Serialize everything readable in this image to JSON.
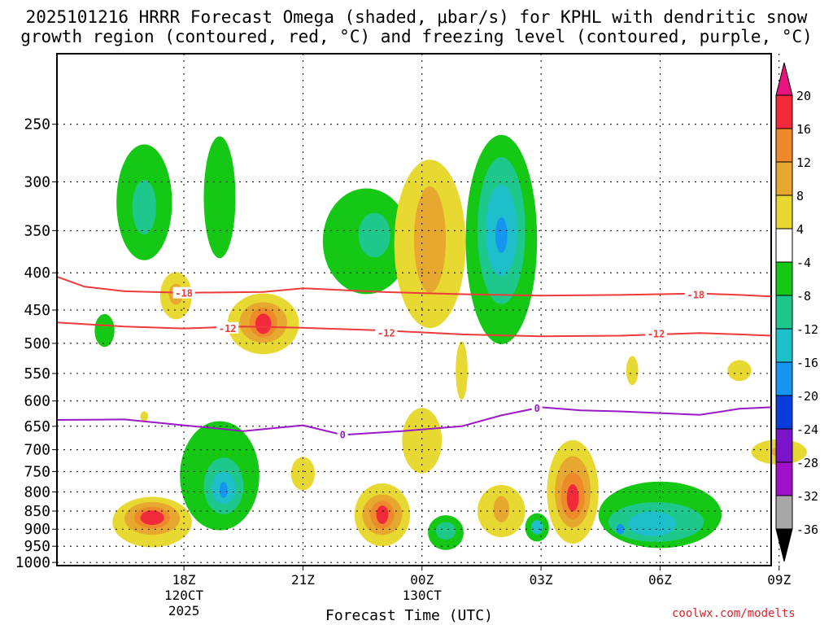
{
  "title": {
    "line1": "2025101216 HRRR Forecast Omega (shaded, μbar/s) for KPHL with dendritic snow",
    "line2": "growth region (contoured, red, °C) and freezing level (contoured, purple, °C)"
  },
  "credit": "coolwx.com/modelts",
  "colors": {
    "green": "#16c816",
    "teal": "#1ec88c",
    "cyan": "#1ebeca",
    "blue": "#1496f0",
    "navy": "#0a3cdc",
    "yellow": "#e8d832",
    "lightorange": "#e6b02e",
    "orange": "#ee8a2c",
    "redorange": "#f4602a",
    "red": "#f02a3a",
    "magenta": "#e6147c",
    "ground": "#a0522d",
    "dgz": "#ee3a3a",
    "freezing": "#9a18c6"
  },
  "chart_data": {
    "type": "heatmap",
    "title": "2025101216 HRRR Forecast Omega (shaded, μbar/s) for KPHL with dendritic snow growth region (contoured, red, °C) and freezing level (contoured, purple, °C)",
    "xlabel": "Forecast Time (UTC)",
    "ylabel": "",
    "xlim_hours_from_18Z": [
      -3.2,
      14.8
    ],
    "ylim_mb": [
      1010,
      200
    ],
    "y_ticks": [
      250,
      300,
      350,
      400,
      450,
      500,
      550,
      600,
      650,
      700,
      750,
      800,
      850,
      900,
      950,
      1000
    ],
    "x_ticks": [
      {
        "hour": 0,
        "label": "18Z",
        "sub1": "120CT",
        "sub2": "2025"
      },
      {
        "hour": 3,
        "label": "21Z",
        "sub1": "",
        "sub2": ""
      },
      {
        "hour": 6,
        "label": "00Z",
        "sub1": "130CT",
        "sub2": ""
      },
      {
        "hour": 9,
        "label": "03Z",
        "sub1": "",
        "sub2": ""
      },
      {
        "hour": 12,
        "label": "06Z",
        "sub1": "",
        "sub2": ""
      },
      {
        "hour": 15,
        "label": "09Z",
        "sub1": "",
        "sub2": ""
      }
    ],
    "colorbar": {
      "labels": [
        "20",
        "16",
        "12",
        "8",
        "4",
        "-4",
        "-8",
        "-12",
        "-16",
        "-20",
        "-24",
        "-28",
        "-32",
        "-36"
      ],
      "bins": [
        {
          "range": "16 to 20",
          "color": "#f02a3a"
        },
        {
          "range": "12 to 16",
          "color": "#ee8a2c"
        },
        {
          "range": "8 to 12",
          "color": "#e6a82e"
        },
        {
          "range": "4 to 8",
          "color": "#e8d832"
        },
        {
          "range": "-4 to 4",
          "color": "#ffffff"
        },
        {
          "range": "-8 to -4",
          "color": "#16c816"
        },
        {
          "range": "-12 to -8",
          "color": "#1ec88c"
        },
        {
          "range": "-16 to -12",
          "color": "#1ebeca"
        },
        {
          "range": "-20 to -16",
          "color": "#1496f0"
        },
        {
          "range": "-24 to -20",
          "color": "#0a3cdc"
        },
        {
          "range": "-28 to -24",
          "color": "#7a14c8"
        },
        {
          "range": "-32 to -28",
          "color": "#a010c8"
        },
        {
          "range": "-36 to -32",
          "color": "#a8a8a8"
        }
      ],
      "top_arrow": "#e6147c",
      "bottom_arrow": "#000000"
    },
    "contours": [
      {
        "name": "dgz-18",
        "label": "-18",
        "color": "#ee3a3a",
        "label_points": [
          [
            0,
            426
          ],
          [
            12.9,
            428
          ]
        ],
        "points": [
          [
            -3.2,
            405
          ],
          [
            -2.5,
            418
          ],
          [
            -1.5,
            424
          ],
          [
            0,
            426
          ],
          [
            2,
            425
          ],
          [
            3,
            420
          ],
          [
            5,
            425
          ],
          [
            7,
            428
          ],
          [
            9,
            430
          ],
          [
            11,
            429
          ],
          [
            12,
            428
          ],
          [
            13,
            427
          ],
          [
            14,
            429
          ],
          [
            14.8,
            431
          ]
        ]
      },
      {
        "name": "dgz-12",
        "label": "-12",
        "color": "#ee3a3a",
        "label_points": [
          [
            1.1,
            476
          ],
          [
            5.1,
            483
          ],
          [
            11.9,
            484
          ]
        ],
        "points": [
          [
            -3.2,
            468
          ],
          [
            -1.5,
            474
          ],
          [
            0,
            477
          ],
          [
            1.5,
            474
          ],
          [
            3,
            476
          ],
          [
            5,
            480
          ],
          [
            7,
            486
          ],
          [
            9,
            489
          ],
          [
            11,
            488
          ],
          [
            12,
            486
          ],
          [
            13,
            484
          ],
          [
            14,
            486
          ],
          [
            14.8,
            488
          ]
        ]
      },
      {
        "name": "freezing",
        "label": "0",
        "color": "#9a18c6",
        "label_points": [
          [
            4.0,
            666
          ],
          [
            8.9,
            613
          ]
        ],
        "points": [
          [
            -3.2,
            637
          ],
          [
            -1.5,
            636
          ],
          [
            0,
            648
          ],
          [
            1.5,
            660
          ],
          [
            3,
            648
          ],
          [
            4,
            668
          ],
          [
            5.5,
            660
          ],
          [
            7,
            650
          ],
          [
            8,
            628
          ],
          [
            9,
            612
          ],
          [
            10,
            618
          ],
          [
            11,
            620
          ],
          [
            13,
            627
          ],
          [
            14,
            615
          ],
          [
            14.8,
            612
          ]
        ]
      }
    ],
    "regions": [
      {
        "name": "green-left-upper",
        "color": "#16c816",
        "center": [
          -1.0,
          320
        ],
        "dx": 0.7,
        "dp": 58
      },
      {
        "name": "teal-left-upper",
        "color": "#1ec88c",
        "center": [
          -1.0,
          325
        ],
        "dx": 0.3,
        "dp": 28
      },
      {
        "name": "green-small-strip",
        "color": "#16c816",
        "center": [
          0.9,
          315
        ],
        "dx": 0.4,
        "dp": 60
      },
      {
        "name": "green-mid-upper",
        "color": "#16c816",
        "center": [
          4.6,
          362
        ],
        "dx": 1.1,
        "dp": 60
      },
      {
        "name": "teal-mid-upper",
        "color": "#1ec88c",
        "center": [
          4.8,
          355
        ],
        "dx": 0.4,
        "dp": 25
      },
      {
        "name": "yellow-tall-6z",
        "color": "#e8d832",
        "center": [
          6.2,
          365
        ],
        "dx": 0.9,
        "dp": 95
      },
      {
        "name": "orange-tall-6z",
        "color": "#e6a82e",
        "center": [
          6.2,
          360
        ],
        "dx": 0.4,
        "dp": 60
      },
      {
        "name": "green-03z-large",
        "color": "#16c816",
        "center": [
          8.0,
          360
        ],
        "dx": 0.9,
        "dp": 115
      },
      {
        "name": "teal-03z",
        "color": "#1ec88c",
        "center": [
          8.0,
          350
        ],
        "dx": 0.6,
        "dp": 80
      },
      {
        "name": "cyan-03z",
        "color": "#1ebeca",
        "center": [
          8.0,
          350
        ],
        "dx": 0.4,
        "dp": 50
      },
      {
        "name": "blue-03z",
        "color": "#1496f0",
        "center": [
          8.0,
          355
        ],
        "dx": 0.15,
        "dp": 20
      },
      {
        "name": "yellow-left-430",
        "color": "#e8d832",
        "center": [
          -0.2,
          430
        ],
        "dx": 0.4,
        "dp": 32
      },
      {
        "name": "orange-left-430",
        "color": "#e6a82e",
        "center": [
          -0.2,
          428
        ],
        "dx": 0.18,
        "dp": 14
      },
      {
        "name": "green-left-480",
        "color": "#16c816",
        "center": [
          -2.0,
          480
        ],
        "dx": 0.25,
        "dp": 25
      },
      {
        "name": "yellow-1930",
        "color": "#e8d832",
        "center": [
          2.0,
          470
        ],
        "dx": 0.9,
        "dp": 45
      },
      {
        "name": "orange-1930",
        "color": "#e6a82e",
        "center": [
          2.0,
          468
        ],
        "dx": 0.6,
        "dp": 30
      },
      {
        "name": "redorange-1930",
        "color": "#ee8a2c",
        "center": [
          2.0,
          468
        ],
        "dx": 0.35,
        "dp": 22
      },
      {
        "name": "red-1930",
        "color": "#f02a3a",
        "center": [
          2.0,
          470
        ],
        "dx": 0.2,
        "dp": 15
      },
      {
        "name": "yellow-0130-col",
        "color": "#e8d832",
        "center": [
          7.0,
          545
        ],
        "dx": 0.15,
        "dp": 50
      },
      {
        "name": "yellow-12z-small",
        "color": "#e8d832",
        "center": [
          11.3,
          545
        ],
        "dx": 0.15,
        "dp": 25
      },
      {
        "name": "yellow-09z-small",
        "color": "#e8d832",
        "center": [
          14.0,
          545
        ],
        "dx": 0.3,
        "dp": 18
      },
      {
        "name": "yellow-left-640",
        "color": "#e8d832",
        "center": [
          -1.0,
          630
        ],
        "dx": 0.1,
        "dp": 10
      },
      {
        "name": "yellow-2130-diag",
        "color": "#e8d832",
        "center": [
          6.0,
          680
        ],
        "dx": 0.5,
        "dp": 70
      },
      {
        "name": "yellow-21z-small",
        "color": "#e8d832",
        "center": [
          3.0,
          755
        ],
        "dx": 0.3,
        "dp": 40
      },
      {
        "name": "yellow-0930",
        "color": "#e8d832",
        "center": [
          15.0,
          705
        ],
        "dx": 0.7,
        "dp": 28
      },
      {
        "name": "orange-0930",
        "color": "#e6a82e",
        "center": [
          15.0,
          705
        ],
        "dx": 0.2,
        "dp": 10
      },
      {
        "name": "green-1830-diag",
        "color": "#16c816",
        "center": [
          0.9,
          760
        ],
        "dx": 1.0,
        "dp": 130
      },
      {
        "name": "teal-1830",
        "color": "#1ec88c",
        "center": [
          1.0,
          785
        ],
        "dx": 0.5,
        "dp": 70
      },
      {
        "name": "cyan-1830",
        "color": "#1ebeca",
        "center": [
          1.0,
          790
        ],
        "dx": 0.3,
        "dp": 40
      },
      {
        "name": "blue-1830",
        "color": "#1496f0",
        "center": [
          1.0,
          795
        ],
        "dx": 0.1,
        "dp": 20
      },
      {
        "name": "yellow-17z-low",
        "color": "#e8d832",
        "center": [
          -0.8,
          880
        ],
        "dx": 1.0,
        "dp": 70
      },
      {
        "name": "orange-17z-low",
        "color": "#e6a82e",
        "center": [
          -0.8,
          870
        ],
        "dx": 0.7,
        "dp": 45
      },
      {
        "name": "redorange-17z-low",
        "color": "#ee8a2c",
        "center": [
          -0.8,
          868
        ],
        "dx": 0.45,
        "dp": 30
      },
      {
        "name": "red-17z-low",
        "color": "#f02a3a",
        "center": [
          -0.8,
          868
        ],
        "dx": 0.3,
        "dp": 20
      },
      {
        "name": "yellow-2330-low",
        "color": "#e8d832",
        "center": [
          5.0,
          860
        ],
        "dx": 0.7,
        "dp": 85
      },
      {
        "name": "orange-2330-low",
        "color": "#e6a82e",
        "center": [
          5.0,
          860
        ],
        "dx": 0.5,
        "dp": 55
      },
      {
        "name": "redorange-2330-low",
        "color": "#ee8a2c",
        "center": [
          5.0,
          860
        ],
        "dx": 0.3,
        "dp": 38
      },
      {
        "name": "red-2330-low",
        "color": "#f02a3a",
        "center": [
          5.0,
          860
        ],
        "dx": 0.15,
        "dp": 25
      },
      {
        "name": "green-0030-low",
        "color": "#16c816",
        "center": [
          6.6,
          910
        ],
        "dx": 0.45,
        "dp": 50
      },
      {
        "name": "teal-0030-low",
        "color": "#1ec88c",
        "center": [
          6.6,
          905
        ],
        "dx": 0.25,
        "dp": 25
      },
      {
        "name": "yellow-0200-low",
        "color": "#e8d832",
        "center": [
          8.0,
          850
        ],
        "dx": 0.6,
        "dp": 70
      },
      {
        "name": "orange-0200-low",
        "color": "#e6a82e",
        "center": [
          8.0,
          845
        ],
        "dx": 0.2,
        "dp": 35
      },
      {
        "name": "green-0300-low",
        "color": "#16c816",
        "center": [
          8.9,
          895
        ],
        "dx": 0.3,
        "dp": 40
      },
      {
        "name": "cyan-0300-low",
        "color": "#1ebeca",
        "center": [
          8.9,
          895
        ],
        "dx": 0.15,
        "dp": 20
      },
      {
        "name": "yellow-0400",
        "color": "#e8d832",
        "center": [
          9.8,
          800
        ],
        "dx": 0.65,
        "dp": 130
      },
      {
        "name": "orange-0400",
        "color": "#e6a82e",
        "center": [
          9.8,
          800
        ],
        "dx": 0.45,
        "dp": 90
      },
      {
        "name": "redorange-0400",
        "color": "#ee8a2c",
        "center": [
          9.8,
          810
        ],
        "dx": 0.3,
        "dp": 60
      },
      {
        "name": "red-0400",
        "color": "#f02a3a",
        "center": [
          9.8,
          815
        ],
        "dx": 0.15,
        "dp": 35
      },
      {
        "name": "green-0530-low",
        "color": "#16c816",
        "center": [
          12.0,
          860
        ],
        "dx": 1.55,
        "dp": 90
      },
      {
        "name": "teal-0530-low",
        "color": "#1ec88c",
        "center": [
          11.9,
          880
        ],
        "dx": 1.2,
        "dp": 55
      },
      {
        "name": "cyan-0530-low",
        "color": "#1ebeca",
        "center": [
          11.8,
          885
        ],
        "dx": 0.6,
        "dp": 35
      },
      {
        "name": "blue-0530-low",
        "color": "#1496f0",
        "center": [
          11.0,
          900
        ],
        "dx": 0.1,
        "dp": 15
      }
    ]
  }
}
